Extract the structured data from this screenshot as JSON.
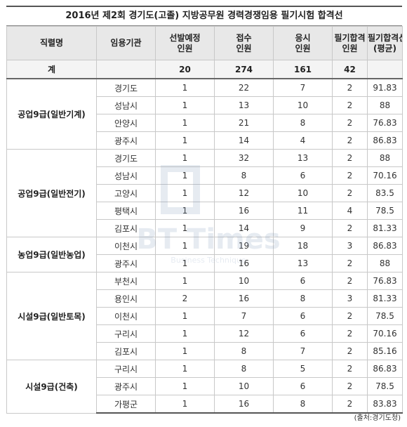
{
  "title": "2016년 제2회 경기도(고졸) 지방공무원 경력경쟁임용 필기시험 합격선",
  "headers": {
    "job": "직렬명",
    "agency": "임용기관",
    "planned": [
      "선발예정",
      "인원"
    ],
    "applicants": [
      "접수",
      "인원"
    ],
    "examinees": [
      "응시",
      "인원"
    ],
    "passed": [
      "필기합격",
      "인원"
    ],
    "cutoff": [
      "필기합격선",
      "(평균)"
    ]
  },
  "total": {
    "label": "계",
    "planned": "20",
    "applicants": "274",
    "examinees": "161",
    "passed": "42",
    "cutoff": ""
  },
  "groups": [
    {
      "name": "공업9급(일반기계)",
      "rows": [
        {
          "agency": "경기도",
          "planned": "1",
          "applicants": "22",
          "examinees": "7",
          "passed": "2",
          "cutoff": "91.83"
        },
        {
          "agency": "성남시",
          "planned": "1",
          "applicants": "13",
          "examinees": "10",
          "passed": "2",
          "cutoff": "88"
        },
        {
          "agency": "안양시",
          "planned": "1",
          "applicants": "21",
          "examinees": "8",
          "passed": "2",
          "cutoff": "76.83"
        },
        {
          "agency": "광주시",
          "planned": "1",
          "applicants": "14",
          "examinees": "4",
          "passed": "2",
          "cutoff": "86.83"
        }
      ]
    },
    {
      "name": "공업9급(일반전기)",
      "rows": [
        {
          "agency": "경기도",
          "planned": "1",
          "applicants": "32",
          "examinees": "13",
          "passed": "2",
          "cutoff": "88"
        },
        {
          "agency": "성남시",
          "planned": "1",
          "applicants": "8",
          "examinees": "6",
          "passed": "2",
          "cutoff": "70.16"
        },
        {
          "agency": "고양시",
          "planned": "1",
          "applicants": "12",
          "examinees": "10",
          "passed": "2",
          "cutoff": "83.5"
        },
        {
          "agency": "평택시",
          "planned": "1",
          "applicants": "16",
          "examinees": "11",
          "passed": "4",
          "cutoff": "78.5"
        },
        {
          "agency": "김포시",
          "planned": "1",
          "applicants": "14",
          "examinees": "9",
          "passed": "2",
          "cutoff": "81.33"
        }
      ]
    },
    {
      "name": "농업9급(일반농업)",
      "rows": [
        {
          "agency": "이천시",
          "planned": "1",
          "applicants": "19",
          "examinees": "18",
          "passed": "3",
          "cutoff": "86.83"
        },
        {
          "agency": "광주시",
          "planned": "1",
          "applicants": "16",
          "examinees": "13",
          "passed": "2",
          "cutoff": "88"
        }
      ]
    },
    {
      "name": "시설9급(일반토목)",
      "rows": [
        {
          "agency": "부천시",
          "planned": "1",
          "applicants": "10",
          "examinees": "6",
          "passed": "2",
          "cutoff": "76.83"
        },
        {
          "agency": "용인시",
          "planned": "2",
          "applicants": "16",
          "examinees": "8",
          "passed": "3",
          "cutoff": "81.33"
        },
        {
          "agency": "이천시",
          "planned": "1",
          "applicants": "7",
          "examinees": "6",
          "passed": "2",
          "cutoff": "78.5"
        },
        {
          "agency": "구리시",
          "planned": "1",
          "applicants": "12",
          "examinees": "6",
          "passed": "2",
          "cutoff": "70.16"
        },
        {
          "agency": "김포시",
          "planned": "1",
          "applicants": "8",
          "examinees": "7",
          "passed": "2",
          "cutoff": "85.16"
        }
      ]
    },
    {
      "name": "시설9급(건축)",
      "rows": [
        {
          "agency": "구리시",
          "planned": "1",
          "applicants": "8",
          "examinees": "5",
          "passed": "2",
          "cutoff": "86.83"
        },
        {
          "agency": "광주시",
          "planned": "1",
          "applicants": "10",
          "examinees": "6",
          "passed": "2",
          "cutoff": "78.5"
        },
        {
          "agency": "가평군",
          "planned": "1",
          "applicants": "16",
          "examinees": "8",
          "passed": "2",
          "cutoff": "83.83"
        }
      ]
    }
  ],
  "source": "(출처:경기도청)",
  "watermark": {
    "text": "BT Times",
    "subtext": "Business Technique"
  }
}
